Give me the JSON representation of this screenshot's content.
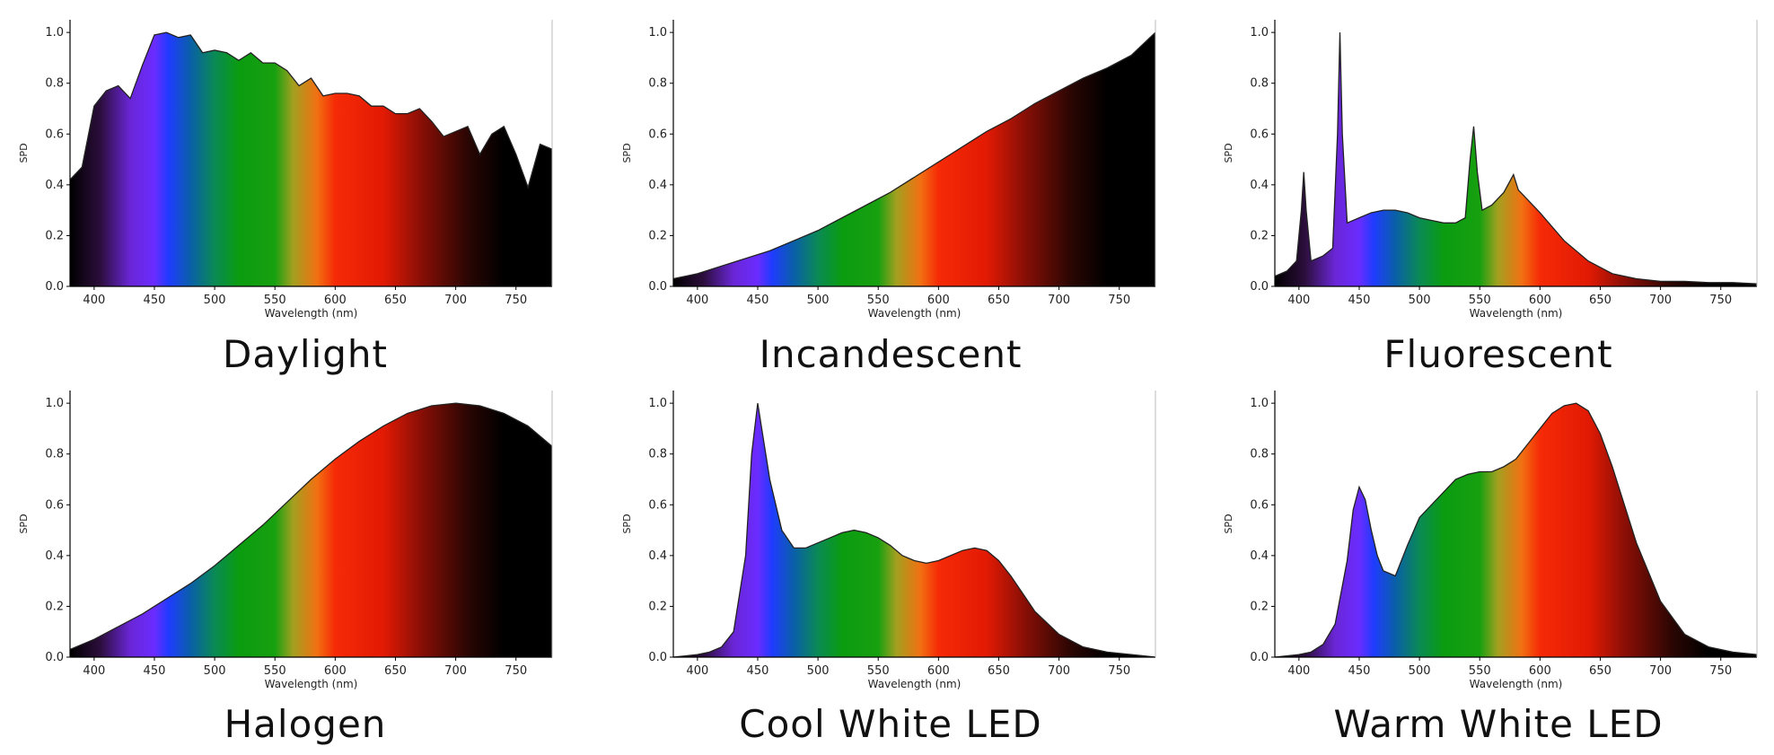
{
  "colors": {
    "spectrum_stops": [
      {
        "nm": 380,
        "color": "#000000"
      },
      {
        "nm": 405,
        "color": "#2c0e3c"
      },
      {
        "nm": 430,
        "color": "#6a26d6"
      },
      {
        "nm": 450,
        "color": "#6a2cff"
      },
      {
        "nm": 462,
        "color": "#1f3cff"
      },
      {
        "nm": 480,
        "color": "#0a5fa8"
      },
      {
        "nm": 500,
        "color": "#0a8a55"
      },
      {
        "nm": 520,
        "color": "#0b9c10"
      },
      {
        "nm": 550,
        "color": "#17a010"
      },
      {
        "nm": 565,
        "color": "#a3a020"
      },
      {
        "nm": 585,
        "color": "#f27012"
      },
      {
        "nm": 600,
        "color": "#f62a06"
      },
      {
        "nm": 640,
        "color": "#e21a04"
      },
      {
        "nm": 670,
        "color": "#8c0f06"
      },
      {
        "nm": 710,
        "color": "#2a0603"
      },
      {
        "nm": 740,
        "color": "#000000"
      }
    ],
    "outline": "#222222",
    "axis": "#000000"
  },
  "chart_data": [
    {
      "type": "area",
      "title": "Daylight",
      "xlabel": "Wavelength (nm)",
      "ylabel": "SPD",
      "xlim": [
        380,
        780
      ],
      "ylim": [
        0,
        1.05
      ],
      "xticks": [
        400,
        450,
        500,
        550,
        600,
        650,
        700,
        750
      ],
      "yticks": [
        0.0,
        0.2,
        0.4,
        0.6,
        0.8,
        1.0
      ],
      "x": [
        380,
        390,
        400,
        410,
        420,
        430,
        440,
        450,
        460,
        470,
        480,
        490,
        500,
        510,
        520,
        530,
        540,
        550,
        560,
        570,
        580,
        590,
        600,
        610,
        620,
        630,
        640,
        650,
        660,
        670,
        680,
        690,
        700,
        710,
        720,
        730,
        740,
        750,
        760,
        770,
        780
      ],
      "y": [
        0.42,
        0.47,
        0.71,
        0.77,
        0.79,
        0.74,
        0.87,
        0.99,
        1.0,
        0.98,
        0.99,
        0.92,
        0.93,
        0.92,
        0.89,
        0.92,
        0.88,
        0.88,
        0.85,
        0.79,
        0.82,
        0.75,
        0.76,
        0.76,
        0.75,
        0.71,
        0.71,
        0.68,
        0.68,
        0.7,
        0.65,
        0.59,
        0.61,
        0.63,
        0.52,
        0.6,
        0.63,
        0.52,
        0.39,
        0.56,
        0.54
      ]
    },
    {
      "type": "area",
      "title": "Incandescent",
      "xlabel": "Wavelength (nm)",
      "ylabel": "SPD",
      "xlim": [
        380,
        780
      ],
      "ylim": [
        0,
        1.05
      ],
      "xticks": [
        400,
        450,
        500,
        550,
        600,
        650,
        700,
        750
      ],
      "yticks": [
        0.0,
        0.2,
        0.4,
        0.6,
        0.8,
        1.0
      ],
      "x": [
        380,
        400,
        420,
        440,
        460,
        480,
        500,
        520,
        540,
        560,
        580,
        600,
        620,
        640,
        660,
        680,
        700,
        720,
        740,
        760,
        780
      ],
      "y": [
        0.03,
        0.05,
        0.08,
        0.11,
        0.14,
        0.18,
        0.22,
        0.27,
        0.32,
        0.37,
        0.43,
        0.49,
        0.55,
        0.61,
        0.66,
        0.72,
        0.77,
        0.82,
        0.86,
        0.91,
        1.0
      ]
    },
    {
      "type": "area",
      "title": "Fluorescent",
      "xlabel": "Wavelength (nm)",
      "ylabel": "SPD",
      "xlim": [
        380,
        780
      ],
      "ylim": [
        0,
        1.05
      ],
      "xticks": [
        400,
        450,
        500,
        550,
        600,
        650,
        700,
        750
      ],
      "yticks": [
        0.0,
        0.2,
        0.4,
        0.6,
        0.8,
        1.0
      ],
      "x": [
        380,
        390,
        398,
        402,
        404,
        406,
        410,
        420,
        428,
        432,
        434,
        436,
        440,
        450,
        460,
        470,
        480,
        490,
        500,
        510,
        520,
        530,
        538,
        542,
        545,
        548,
        552,
        560,
        570,
        578,
        582,
        590,
        600,
        620,
        640,
        660,
        680,
        700,
        720,
        740,
        760,
        780
      ],
      "y": [
        0.04,
        0.06,
        0.1,
        0.3,
        0.45,
        0.3,
        0.1,
        0.12,
        0.15,
        0.6,
        1.0,
        0.6,
        0.25,
        0.27,
        0.29,
        0.3,
        0.3,
        0.29,
        0.27,
        0.26,
        0.25,
        0.25,
        0.27,
        0.5,
        0.63,
        0.45,
        0.3,
        0.32,
        0.37,
        0.44,
        0.38,
        0.34,
        0.29,
        0.18,
        0.1,
        0.05,
        0.03,
        0.02,
        0.02,
        0.015,
        0.015,
        0.01
      ]
    },
    {
      "type": "area",
      "title": "Halogen",
      "xlabel": "Wavelength (nm)",
      "ylabel": "SPD",
      "xlim": [
        380,
        780
      ],
      "ylim": [
        0,
        1.05
      ],
      "xticks": [
        400,
        450,
        500,
        550,
        600,
        650,
        700,
        750
      ],
      "yticks": [
        0.0,
        0.2,
        0.4,
        0.6,
        0.8,
        1.0
      ],
      "x": [
        380,
        400,
        420,
        440,
        460,
        480,
        500,
        520,
        540,
        560,
        580,
        600,
        620,
        640,
        660,
        680,
        700,
        720,
        740,
        760,
        780
      ],
      "y": [
        0.03,
        0.07,
        0.12,
        0.17,
        0.23,
        0.29,
        0.36,
        0.44,
        0.52,
        0.61,
        0.7,
        0.78,
        0.85,
        0.91,
        0.96,
        0.99,
        1.0,
        0.99,
        0.96,
        0.91,
        0.83
      ]
    },
    {
      "type": "area",
      "title": "Cool White LED",
      "xlabel": "Wavelength (nm)",
      "ylabel": "SPD",
      "xlim": [
        380,
        780
      ],
      "ylim": [
        0,
        1.05
      ],
      "xticks": [
        400,
        450,
        500,
        550,
        600,
        650,
        700,
        750
      ],
      "yticks": [
        0.0,
        0.2,
        0.4,
        0.6,
        0.8,
        1.0
      ],
      "x": [
        380,
        400,
        410,
        420,
        430,
        440,
        445,
        450,
        455,
        460,
        465,
        470,
        480,
        490,
        500,
        510,
        520,
        530,
        540,
        550,
        560,
        570,
        580,
        590,
        600,
        610,
        620,
        630,
        640,
        650,
        660,
        670,
        680,
        700,
        720,
        740,
        760,
        780
      ],
      "y": [
        0.0,
        0.01,
        0.02,
        0.04,
        0.1,
        0.4,
        0.8,
        1.0,
        0.85,
        0.7,
        0.6,
        0.5,
        0.43,
        0.43,
        0.45,
        0.47,
        0.49,
        0.5,
        0.49,
        0.47,
        0.44,
        0.4,
        0.38,
        0.37,
        0.38,
        0.4,
        0.42,
        0.43,
        0.42,
        0.38,
        0.32,
        0.25,
        0.18,
        0.09,
        0.04,
        0.02,
        0.01,
        0.0
      ]
    },
    {
      "type": "area",
      "title": "Warm White LED",
      "xlabel": "Wavelength (nm)",
      "ylabel": "SPD",
      "xlim": [
        380,
        780
      ],
      "ylim": [
        0,
        1.05
      ],
      "xticks": [
        400,
        450,
        500,
        550,
        600,
        650,
        700,
        750
      ],
      "yticks": [
        0.0,
        0.2,
        0.4,
        0.6,
        0.8,
        1.0
      ],
      "x": [
        380,
        400,
        410,
        420,
        430,
        440,
        445,
        450,
        455,
        460,
        465,
        470,
        480,
        490,
        500,
        510,
        520,
        530,
        540,
        550,
        560,
        570,
        580,
        590,
        600,
        610,
        620,
        630,
        640,
        650,
        660,
        670,
        680,
        700,
        720,
        740,
        760,
        780
      ],
      "y": [
        0.0,
        0.01,
        0.02,
        0.05,
        0.13,
        0.38,
        0.58,
        0.67,
        0.62,
        0.5,
        0.4,
        0.34,
        0.32,
        0.44,
        0.55,
        0.6,
        0.65,
        0.7,
        0.72,
        0.73,
        0.73,
        0.75,
        0.78,
        0.84,
        0.9,
        0.96,
        0.99,
        1.0,
        0.97,
        0.88,
        0.75,
        0.6,
        0.45,
        0.22,
        0.09,
        0.04,
        0.02,
        0.01
      ]
    }
  ]
}
